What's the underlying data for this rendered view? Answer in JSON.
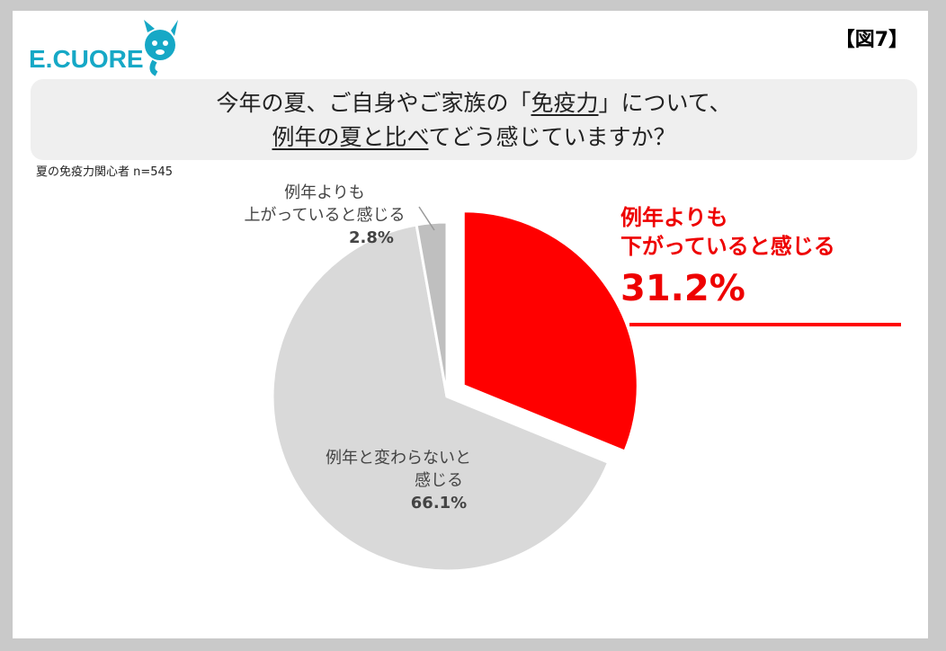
{
  "brand": {
    "logo_text": "E.CUORE"
  },
  "figure_label": "【図7】",
  "title": {
    "line1_a": "今年の夏、ご自身やご家族の「",
    "line1_u": "免疫力",
    "line1_b": "」について、",
    "line2_u": "例年の夏と比べ",
    "line2_b": "てどう感じていますか？"
  },
  "subtitle": "夏の免疫力関心者 n=545",
  "colors": {
    "down": "#ff0000",
    "same": "#d9d9d9",
    "up": "#bfbfbf",
    "down_text": "#ee0000"
  },
  "chart_data": {
    "type": "pie",
    "title": "",
    "slices": [
      {
        "label": "例年よりも下がっていると感じる",
        "label_lines": [
          "例年よりも",
          "下がっていると感じる"
        ],
        "value": 31.2,
        "value_label": "31.2%",
        "exploded": true
      },
      {
        "label": "例年と変わらないと感じる",
        "label_lines": [
          "例年と変わらないと",
          "感じる"
        ],
        "value": 66.1,
        "value_label": "66.1%",
        "exploded": false
      },
      {
        "label": "例年よりも上がっていると感じる",
        "label_lines": [
          "例年よりも",
          "上がっていると感じる"
        ],
        "value": 2.8,
        "value_label": "2.8%",
        "exploded": false
      }
    ]
  }
}
